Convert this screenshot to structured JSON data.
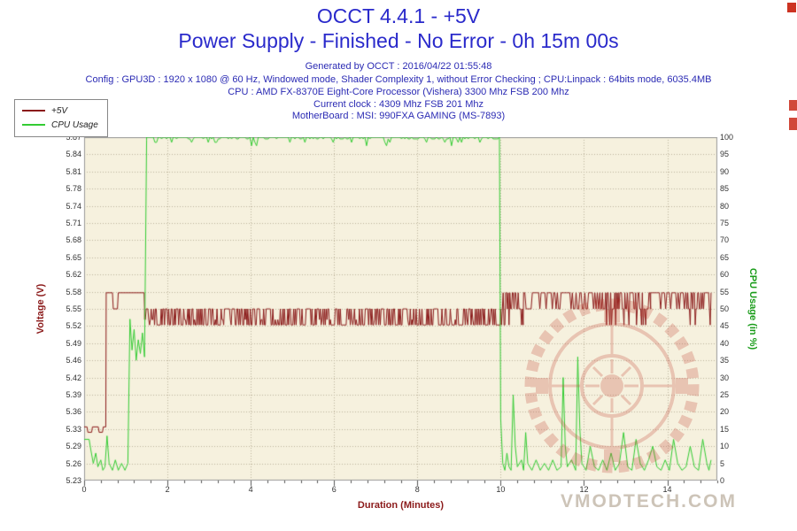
{
  "header": {
    "title": "OCCT 4.4.1 - +5V",
    "subtitle": "Power Supply - Finished - No Error - 0h 15m 00s",
    "generated": "Generated by OCCT : 2016/04/22 01:55:48",
    "config_line": "Config : GPU3D : 1920 x 1080 @ 60 Hz, Windowed mode, Shader Complexity 1, without Error Checking ; CPU:Linpack : 64bits mode, 6035.4MB",
    "cpu_line": "CPU : AMD FX-8370E Eight-Core Processor (Vishera) 3300 Mhz FSB 200 Mhz",
    "clock_line": "Current clock : 4309 Mhz FSB 201 Mhz",
    "motherboard_line": "MotherBoard : MSI: 990FXA GAMING (MS-7893)"
  },
  "watermark": {
    "text": "VMODTECH.COM"
  },
  "colors": {
    "title_blue": "#2a2acb",
    "info_blue": "#2b2bb4",
    "voltage_red": "#8b1a1a",
    "cpu_green": "#33cc33",
    "plot_bg": "#f6f1de",
    "grid": "#bcb49c",
    "axis_text": "#333333",
    "watermark_red": "#c24836",
    "watermark_text": "#cdc4b8"
  },
  "chart_data": {
    "type": "line",
    "title": "OCCT 4.4.1 - +5V",
    "x_axis": {
      "label": "Duration (Minutes)",
      "min": 0,
      "max": 15.2,
      "major_ticks": [
        0,
        2,
        4,
        6,
        8,
        10,
        12,
        14
      ],
      "minor_step": 0.4
    },
    "left_axis": {
      "label": "Voltage (V)",
      "min": 5.23,
      "max": 5.87,
      "tick_labels": [
        "5.23",
        "5.26",
        "5.29",
        "5.33",
        "5.36",
        "5.39",
        "5.42",
        "5.46",
        "5.49",
        "5.52",
        "5.55",
        "5.58",
        "5.62",
        "5.65",
        "5.68",
        "5.71",
        "5.74",
        "5.78",
        "5.81",
        "5.84",
        "5.87"
      ]
    },
    "right_axis": {
      "label": "CPU Usage (in %)",
      "min": 0,
      "max": 100,
      "tick_labels": [
        "0",
        "5",
        "10",
        "15",
        "20",
        "25",
        "30",
        "35",
        "40",
        "45",
        "50",
        "55",
        "60",
        "65",
        "70",
        "75",
        "80",
        "85",
        "90",
        "95",
        "100"
      ]
    },
    "grid": "dotted",
    "legend_position": "top-left",
    "series": [
      {
        "name": "+5V",
        "axis": "left",
        "color": "#8b1a1a",
        "segments": [
          {
            "type": "points",
            "pts": [
              [
                0,
                5.33
              ],
              [
                0.07,
                5.33
              ],
              [
                0.09,
                5.32
              ],
              [
                0.18,
                5.32
              ],
              [
                0.2,
                5.33
              ],
              [
                0.34,
                5.33
              ],
              [
                0.36,
                5.32
              ],
              [
                0.44,
                5.32
              ],
              [
                0.46,
                5.33
              ],
              [
                0.52,
                5.33
              ],
              [
                0.53,
                5.58
              ],
              [
                0.68,
                5.58
              ],
              [
                0.7,
                5.55
              ],
              [
                0.8,
                5.55
              ],
              [
                0.82,
                5.58
              ],
              [
                1.44,
                5.58
              ],
              [
                1.45,
                5.55
              ]
            ]
          },
          {
            "type": "levels",
            "t0": 1.45,
            "t1": 10.0,
            "step": 0.02,
            "levels": [
              5.52,
              5.53,
              5.55
            ],
            "weights": [
              0.45,
              0.1,
              0.45
            ],
            "seed": 11
          },
          {
            "type": "levels",
            "t0": 10.0,
            "t1": 10.55,
            "step": 0.02,
            "levels": [
              5.52,
              5.55,
              5.58
            ],
            "weights": [
              0.2,
              0.4,
              0.4
            ],
            "seed": 12
          },
          {
            "type": "levels",
            "t0": 10.55,
            "t1": 12.4,
            "step": 0.03,
            "levels": [
              5.55,
              5.58
            ],
            "weights": [
              0.2,
              0.8
            ],
            "seed": 13
          },
          {
            "type": "levels",
            "t0": 12.4,
            "t1": 13.6,
            "step": 0.02,
            "levels": [
              5.52,
              5.55,
              5.58
            ],
            "weights": [
              0.1,
              0.4,
              0.5
            ],
            "seed": 14
          },
          {
            "type": "levels",
            "t0": 13.6,
            "t1": 14.45,
            "step": 0.03,
            "levels": [
              5.55,
              5.58
            ],
            "weights": [
              0.15,
              0.85
            ],
            "seed": 15
          },
          {
            "type": "levels",
            "t0": 14.45,
            "t1": 15.05,
            "step": 0.02,
            "levels": [
              5.52,
              5.55,
              5.58
            ],
            "weights": [
              0.1,
              0.35,
              0.55
            ],
            "seed": 16
          }
        ]
      },
      {
        "name": "CPU Usage",
        "axis": "right",
        "color": "#33cc33",
        "segments": [
          {
            "type": "points",
            "pts": [
              [
                0,
                12
              ],
              [
                0.12,
                12
              ],
              [
                0.16,
                9
              ],
              [
                0.22,
                5
              ],
              [
                0.28,
                8
              ],
              [
                0.33,
                4
              ],
              [
                0.4,
                6
              ],
              [
                0.45,
                3
              ],
              [
                0.5,
                4
              ],
              [
                0.55,
                13
              ],
              [
                0.6,
                5
              ],
              [
                0.68,
                3
              ],
              [
                0.75,
                6
              ],
              [
                0.82,
                3
              ],
              [
                0.9,
                5
              ],
              [
                0.98,
                3
              ],
              [
                1.05,
                5
              ],
              [
                1.1,
                47
              ],
              [
                1.15,
                38
              ],
              [
                1.2,
                44
              ],
              [
                1.25,
                35
              ],
              [
                1.3,
                41
              ],
              [
                1.35,
                37
              ],
              [
                1.4,
                43
              ],
              [
                1.45,
                36
              ],
              [
                1.5,
                99
              ]
            ]
          },
          {
            "type": "levels",
            "t0": 1.5,
            "t1": 9.97,
            "step": 0.04,
            "levels": [
              100,
              99.5,
              98.5,
              97.5
            ],
            "weights": [
              0.6,
              0.25,
              0.1,
              0.05
            ],
            "seed": 21
          },
          {
            "type": "points",
            "pts": [
              [
                9.97,
                100
              ],
              [
                10.0,
                18
              ],
              [
                10.05,
                5
              ],
              [
                10.1,
                3
              ],
              [
                10.15,
                8
              ],
              [
                10.2,
                4
              ],
              [
                10.25,
                3
              ],
              [
                10.3,
                25
              ],
              [
                10.35,
                10
              ],
              [
                10.4,
                4
              ],
              [
                10.5,
                6
              ],
              [
                10.55,
                3
              ],
              [
                10.6,
                14
              ],
              [
                10.65,
                5
              ],
              [
                10.75,
                3
              ],
              [
                10.85,
                6
              ],
              [
                10.95,
                3
              ],
              [
                11.05,
                5
              ],
              [
                11.15,
                3
              ],
              [
                11.25,
                6
              ],
              [
                11.35,
                3
              ],
              [
                11.45,
                4
              ],
              [
                11.5,
                30
              ],
              [
                11.55,
                10
              ],
              [
                11.6,
                4
              ],
              [
                11.7,
                6
              ],
              [
                11.8,
                3
              ],
              [
                11.85,
                36
              ],
              [
                11.9,
                15
              ],
              [
                11.95,
                5
              ],
              [
                12.05,
                3
              ],
              [
                12.15,
                10
              ],
              [
                12.25,
                4
              ],
              [
                12.35,
                3
              ],
              [
                12.45,
                6
              ],
              [
                12.55,
                3
              ],
              [
                12.65,
                8
              ],
              [
                12.75,
                3
              ],
              [
                12.85,
                5
              ],
              [
                12.95,
                14
              ],
              [
                13.05,
                4
              ],
              [
                13.15,
                3
              ],
              [
                13.25,
                12
              ],
              [
                13.35,
                5
              ],
              [
                13.45,
                3
              ],
              [
                13.55,
                6
              ],
              [
                13.65,
                10
              ],
              [
                13.75,
                4
              ],
              [
                13.85,
                3
              ],
              [
                13.95,
                6
              ],
              [
                14.05,
                3
              ],
              [
                14.15,
                12
              ],
              [
                14.25,
                5
              ],
              [
                14.35,
                3
              ],
              [
                14.45,
                4
              ],
              [
                14.55,
                10
              ],
              [
                14.65,
                4
              ],
              [
                14.75,
                3
              ],
              [
                14.85,
                12
              ],
              [
                14.95,
                5
              ],
              [
                15.0,
                3
              ],
              [
                15.05,
                6
              ]
            ]
          }
        ]
      }
    ]
  }
}
